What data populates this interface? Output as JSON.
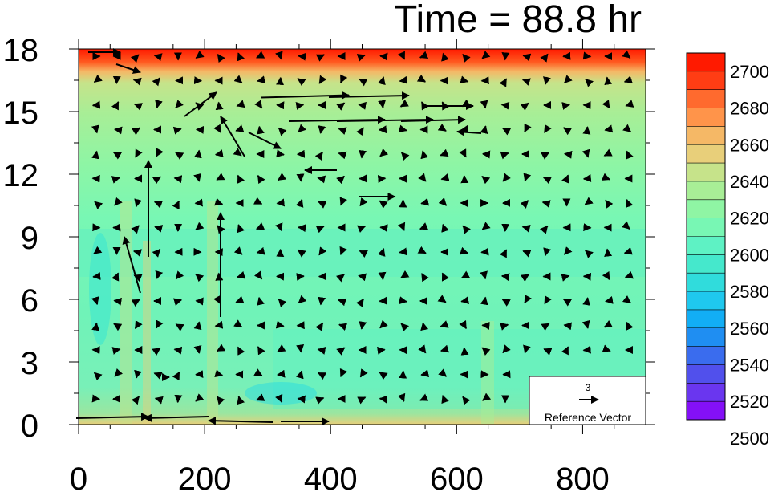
{
  "chart_data": {
    "type": "contour-vector",
    "title": "Time = 88.8 hr",
    "x_ticks": [
      "0",
      "200",
      "400",
      "600",
      "800"
    ],
    "y_ticks": [
      "0",
      "3",
      "6",
      "9",
      "12",
      "15",
      "18"
    ],
    "xlim": [
      0,
      900
    ],
    "ylim": [
      0,
      18
    ],
    "colorbar": {
      "labels": [
        "2700",
        "2680",
        "2660",
        "2640",
        "2620",
        "2600",
        "2580",
        "2560",
        "2540",
        "2520",
        "2500"
      ],
      "colors": [
        "#ff1a00",
        "#ff3d14",
        "#ff6a2e",
        "#ff944a",
        "#f5b866",
        "#e8cf7a",
        "#c6e38a",
        "#a8ee96",
        "#8ff5a4",
        "#78f7b4",
        "#5ef2c4",
        "#45e8cc",
        "#30dcdc",
        "#1fc8ee",
        "#12aef5",
        "#1f8ef2",
        "#3a6cee",
        "#5150ec",
        "#6a36ef",
        "#8410f7"
      ],
      "top_value": 2710,
      "step": 5
    },
    "reference_vector": {
      "value": "3",
      "label": "Reference Vector"
    }
  }
}
